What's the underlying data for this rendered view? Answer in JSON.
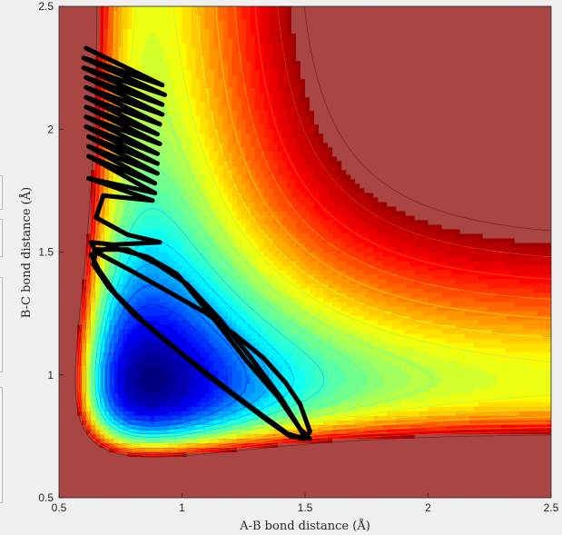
{
  "chart_data": {
    "type": "contour",
    "title": "",
    "xlabel": "A-B bond distance (Å)",
    "ylabel": "B-C bond distance (Å)",
    "xlim": [
      0.5,
      2.5
    ],
    "ylim": [
      0.5,
      2.5
    ],
    "xticks": [
      0.5,
      1,
      1.5,
      2,
      2.5
    ],
    "yticks": [
      0.5,
      1,
      1.5,
      2,
      2.5
    ],
    "xtick_labels": [
      "0.5",
      "1",
      "1.5",
      "2",
      "2.5"
    ],
    "ytick_labels": [
      "0.5",
      "1",
      "1.5",
      "2",
      "2.5"
    ],
    "colormap": "jet",
    "colors": {
      "low": "#00007f",
      "mid": "#ffff00",
      "high": "#a94643",
      "trajectory": "#000000"
    },
    "trajectory": {
      "points": [
        [
          0.61,
          2.33
        ],
        [
          0.92,
          2.18
        ],
        [
          0.6,
          2.29
        ],
        [
          0.93,
          2.14
        ],
        [
          0.6,
          2.25
        ],
        [
          0.92,
          2.1
        ],
        [
          0.61,
          2.21
        ],
        [
          0.92,
          2.06
        ],
        [
          0.61,
          2.17
        ],
        [
          0.91,
          2.02
        ],
        [
          0.61,
          2.13
        ],
        [
          0.9,
          1.98
        ],
        [
          0.61,
          2.09
        ],
        [
          0.91,
          1.94
        ],
        [
          0.61,
          2.05
        ],
        [
          0.9,
          1.9
        ],
        [
          0.61,
          2.01
        ],
        [
          0.9,
          1.86
        ],
        [
          0.62,
          1.97
        ],
        [
          0.9,
          1.82
        ],
        [
          0.62,
          1.93
        ],
        [
          0.89,
          1.78
        ],
        [
          0.62,
          1.89
        ],
        [
          0.89,
          1.74
        ],
        [
          0.62,
          1.8
        ],
        [
          0.88,
          1.71
        ],
        [
          0.68,
          1.73
        ],
        [
          0.65,
          1.64
        ],
        [
          0.78,
          1.57
        ],
        [
          0.91,
          1.54
        ],
        [
          0.72,
          1.53
        ],
        [
          0.63,
          1.54
        ],
        [
          0.65,
          1.5
        ],
        [
          0.8,
          1.42
        ],
        [
          0.96,
          1.33
        ],
        [
          1.1,
          1.25
        ],
        [
          1.22,
          1.16
        ],
        [
          1.33,
          1.07
        ],
        [
          1.42,
          0.97
        ],
        [
          1.48,
          0.88
        ],
        [
          1.52,
          0.77
        ],
        [
          1.5,
          0.74
        ],
        [
          1.43,
          0.76
        ],
        [
          1.32,
          0.84
        ],
        [
          1.2,
          0.93
        ],
        [
          1.07,
          1.03
        ],
        [
          0.93,
          1.14
        ],
        [
          0.8,
          1.25
        ],
        [
          0.7,
          1.36
        ],
        [
          0.64,
          1.45
        ],
        [
          0.65,
          1.51
        ],
        [
          0.78,
          1.51
        ],
        [
          0.9,
          1.45
        ],
        [
          1.02,
          1.37
        ],
        [
          1.15,
          1.23
        ],
        [
          1.28,
          1.07
        ],
        [
          1.4,
          0.91
        ],
        [
          1.48,
          0.78
        ],
        [
          1.5,
          0.74
        ],
        [
          1.44,
          0.75
        ],
        [
          1.34,
          0.82
        ],
        [
          1.22,
          0.91
        ],
        [
          1.1,
          1.0
        ],
        [
          0.97,
          1.11
        ],
        [
          0.84,
          1.22
        ],
        [
          0.73,
          1.33
        ],
        [
          0.66,
          1.43
        ],
        [
          0.63,
          1.49
        ],
        [
          0.71,
          1.52
        ],
        [
          0.86,
          1.48
        ],
        [
          0.98,
          1.41
        ],
        [
          1.12,
          1.24
        ],
        [
          1.26,
          1.06
        ],
        [
          1.39,
          0.91
        ],
        [
          1.48,
          0.78
        ],
        [
          1.52,
          0.74
        ]
      ]
    }
  },
  "figure": {
    "background": "#f0f0f0"
  }
}
